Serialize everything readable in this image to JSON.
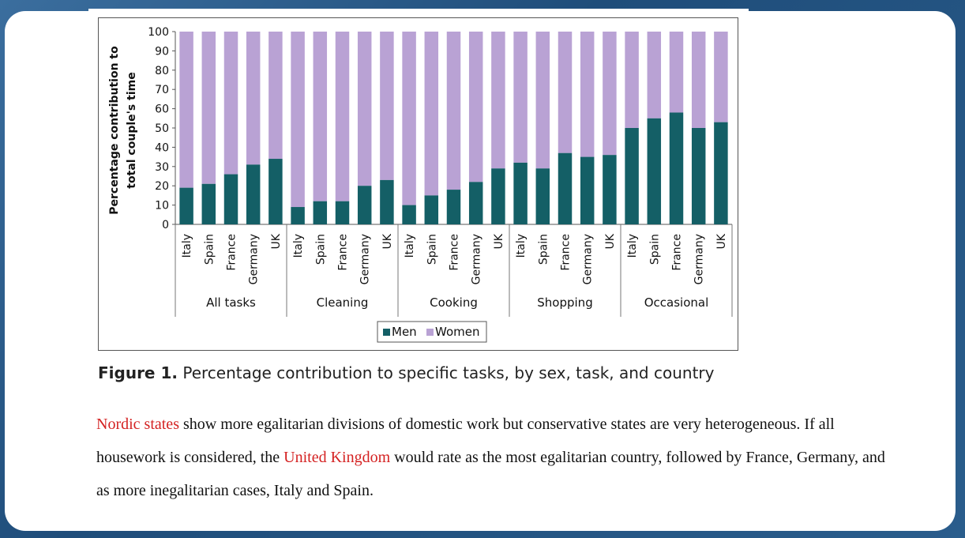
{
  "chart_data": {
    "type": "bar",
    "stacked": true,
    "ylabel_line1": "Percentage contribution to",
    "ylabel_line2": "total couple's time",
    "ylim": [
      0,
      100
    ],
    "yticks": [
      0,
      10,
      20,
      30,
      40,
      50,
      60,
      70,
      80,
      90,
      100
    ],
    "groups": [
      {
        "name": "All tasks",
        "countries": [
          "Italy",
          "Spain",
          "France",
          "Germany",
          "UK"
        ],
        "men": [
          19,
          21,
          26,
          31,
          34
        ]
      },
      {
        "name": "Cleaning",
        "countries": [
          "Italy",
          "Spain",
          "France",
          "Germany",
          "UK"
        ],
        "men": [
          9,
          12,
          12,
          20,
          23
        ]
      },
      {
        "name": "Cooking",
        "countries": [
          "Italy",
          "Spain",
          "France",
          "Germany",
          "UK"
        ],
        "men": [
          10,
          15,
          18,
          22,
          29
        ]
      },
      {
        "name": "Shopping",
        "countries": [
          "Italy",
          "Spain",
          "France",
          "Germany",
          "UK"
        ],
        "men": [
          32,
          29,
          37,
          35,
          36
        ]
      },
      {
        "name": "Occasional",
        "countries": [
          "Italy",
          "Spain",
          "France",
          "Germany",
          "UK"
        ],
        "men": [
          50,
          55,
          58,
          50,
          53
        ]
      }
    ],
    "series": [
      {
        "name": "Men",
        "color": "#145f66"
      },
      {
        "name": "Women",
        "color": "#b9a2d4"
      }
    ],
    "legend": "bottom-center",
    "grid": false
  },
  "caption": {
    "label": "Figure 1.",
    "text": " Percentage contribution to specific tasks, by sex, task, and country"
  },
  "paragraph": {
    "link1": "Nordic states",
    "text1": " show more egalitarian divisions of domestic work but conservative states are very heterogeneous. If all housework is considered, the ",
    "link2": "United Kingdom",
    "text2": " would rate as the most egalitarian country, followed by France, Germany, and as more inegalitarian cases, Italy and Spain."
  }
}
